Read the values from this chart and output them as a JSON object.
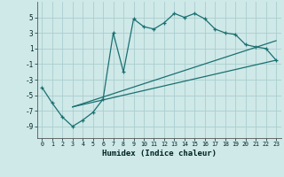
{
  "xlabel": "Humidex (Indice chaleur)",
  "xlim": [
    -0.5,
    23.5
  ],
  "ylim": [
    -10.5,
    7
  ],
  "yticks": [
    5,
    3,
    1,
    -1,
    -3,
    -5,
    -7,
    -9
  ],
  "xticks": [
    0,
    1,
    2,
    3,
    4,
    5,
    6,
    7,
    8,
    9,
    10,
    11,
    12,
    13,
    14,
    15,
    16,
    17,
    18,
    19,
    20,
    21,
    22,
    23
  ],
  "background_color": "#cfe8e8",
  "grid_color": "#aacece",
  "line_color": "#1a7070",
  "curve1_x": [
    0,
    1,
    2,
    3,
    4,
    5,
    6,
    7,
    8,
    9,
    10,
    11,
    12,
    13,
    14,
    15,
    16,
    17,
    18,
    19,
    20,
    21,
    22,
    23
  ],
  "curve1_y": [
    -4,
    -6,
    -7.8,
    -9,
    -8.2,
    -7.2,
    -5.5,
    3.0,
    -2.0,
    4.8,
    3.8,
    3.5,
    4.3,
    5.5,
    5.0,
    5.5,
    4.8,
    3.5,
    3.0,
    2.8,
    1.5,
    1.2,
    1.0,
    -0.5
  ],
  "curve2_x": [
    3,
    23
  ],
  "curve2_y": [
    -6.5,
    2.0
  ],
  "curve3_x": [
    3,
    23
  ],
  "curve3_y": [
    -6.5,
    -0.5
  ]
}
